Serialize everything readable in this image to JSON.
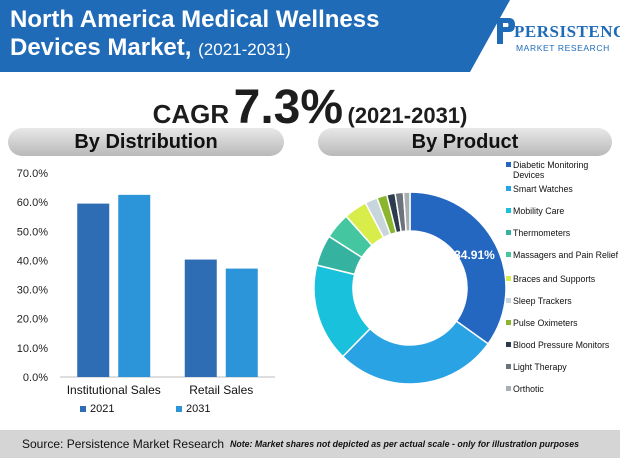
{
  "header": {
    "title_main": "North America Medical Wellness Devices Market,",
    "title_years": "(2021-2031)"
  },
  "logo": {
    "name": "PERSISTENCE",
    "tagline": "MARKET RESEARCH"
  },
  "cagr": {
    "label": "CAGR",
    "value": "7.3%",
    "period": "(2021-2031)"
  },
  "sections": {
    "distribution_title": "By Distribution",
    "product_title": "By Product"
  },
  "footer": {
    "source": "Source: Persistence Market Research",
    "note": "Note: Market shares not depicted as per actual scale - only for illustration purposes"
  },
  "chart_data": [
    {
      "type": "bar",
      "title": "By Distribution",
      "categories": [
        "Institutional Sales",
        "Retail Sales"
      ],
      "series": [
        {
          "name": "2021",
          "values": [
            59.5,
            40.3
          ],
          "color": "#2e6cb4"
        },
        {
          "name": "2031",
          "values": [
            62.5,
            37.2
          ],
          "color": "#2c95da"
        }
      ],
      "ylim": [
        0,
        70
      ],
      "yticks": [
        "0.0%",
        "10.0%",
        "20.0%",
        "30.0%",
        "40.0%",
        "50.0%",
        "60.0%",
        "70.0%"
      ],
      "grid": false,
      "legend": "bottom"
    },
    {
      "type": "pie",
      "title": "By Product",
      "donut": true,
      "labels": [
        "Diabetic Monitoring Devices",
        "Smart Watches",
        "Mobility Care",
        "Thermometers",
        "Massagers and Pain Relief",
        "Braces and Supports",
        "Sleep Trackers",
        "Pulse Oximeters",
        "Blood Pressure Monitors",
        "Light Therapy",
        "Orthotic"
      ],
      "values": [
        34.91,
        27.5,
        16.5,
        5.2,
        4.4,
        3.9,
        2.1,
        1.7,
        1.4,
        1.4,
        1.09
      ],
      "colors": [
        "#2367c0",
        "#29a3e3",
        "#19c1dc",
        "#35b3a0",
        "#44c7a1",
        "#d8ec4a",
        "#c9d5dd",
        "#8ab52c",
        "#2c3c4c",
        "#6d737c",
        "#a9aeb4"
      ],
      "data_labels": [
        "34.91%"
      ],
      "legend": "right"
    }
  ]
}
